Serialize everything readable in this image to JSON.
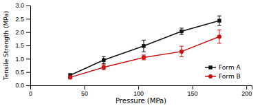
{
  "chart_data": {
    "type": "line",
    "x": [
      37,
      68,
      105,
      140,
      175
    ],
    "series": [
      {
        "name": "Form A",
        "color": "#111111",
        "marker": "square",
        "values": [
          0.38,
          0.95,
          1.48,
          2.03,
          2.43
        ],
        "errors": [
          0.06,
          0.13,
          0.22,
          0.12,
          0.18
        ]
      },
      {
        "name": "Form B",
        "color": "#cc1111",
        "marker": "circle",
        "values": [
          0.3,
          0.68,
          1.05,
          1.27,
          1.83
        ],
        "errors": [
          0.05,
          0.1,
          0.09,
          0.2,
          0.25
        ]
      }
    ],
    "xlabel": "Pressure (MPa)",
    "ylabel": "Tensile Strength (MPa)",
    "xlim": [
      0,
      205
    ],
    "ylim": [
      0,
      3.0
    ],
    "xticks": [
      0,
      50,
      100,
      150,
      200
    ],
    "yticks": [
      {
        "value": 0,
        "label": "0.0"
      },
      0.5,
      {
        "value": 1.0,
        "label": "1.0"
      },
      1.5,
      {
        "value": 2.0,
        "label": "2.0"
      },
      2.5,
      {
        "value": 3.0,
        "label": "3.0"
      }
    ],
    "legend": "lower right"
  }
}
